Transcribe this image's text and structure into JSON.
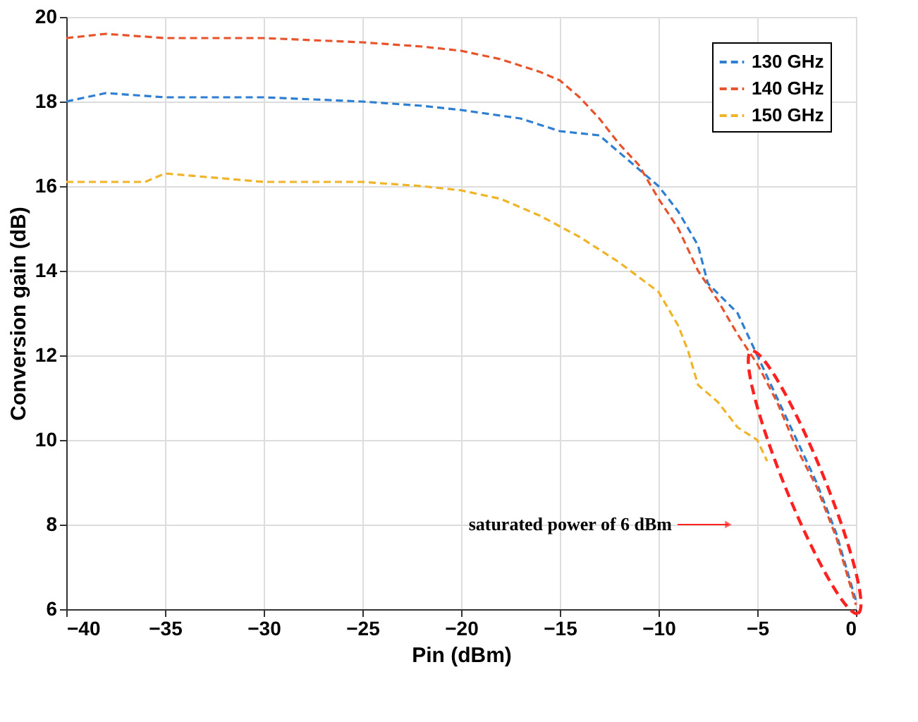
{
  "chart_data": {
    "type": "line",
    "xlabel": "Pin (dBm)",
    "ylabel": "Conversion gain (dB)",
    "xlim": [
      -40,
      0
    ],
    "ylim": [
      6,
      20
    ],
    "xticks": [
      -40,
      -35,
      -30,
      -25,
      -20,
      -15,
      -10,
      -5,
      0
    ],
    "yticks": [
      6,
      8,
      10,
      12,
      14,
      16,
      18,
      20
    ],
    "grid": true,
    "legend": "top right",
    "line_style": "dashed",
    "marker": "none",
    "series": [
      {
        "name": "130 GHz",
        "color": "#2e7fd1",
        "x": [
          -40,
          -38,
          -35,
          -30,
          -25,
          -22,
          -20,
          -17,
          -15,
          -13,
          -12,
          -11,
          -10,
          -9,
          -8,
          -7.5,
          -6,
          -5,
          -4,
          -3,
          -2,
          -1,
          -0.5,
          0
        ],
        "values": [
          18.0,
          18.2,
          18.1,
          18.1,
          18.0,
          17.9,
          17.8,
          17.6,
          17.3,
          17.2,
          16.8,
          16.4,
          16.0,
          15.4,
          14.6,
          13.7,
          13.0,
          12.0,
          11.0,
          10.0,
          9.0,
          7.8,
          7.0,
          6.2
        ]
      },
      {
        "name": "140 GHz",
        "color": "#e8532b",
        "x": [
          -40,
          -38,
          -35,
          -30,
          -25,
          -22,
          -20,
          -18,
          -16,
          -15,
          -14,
          -13,
          -12,
          -11,
          -10,
          -9,
          -8,
          -7,
          -6,
          -5,
          -4,
          -3,
          -2,
          -1,
          0
        ],
        "values": [
          19.5,
          19.6,
          19.5,
          19.5,
          19.4,
          19.3,
          19.2,
          19.0,
          18.7,
          18.5,
          18.1,
          17.6,
          17.0,
          16.5,
          15.7,
          15.0,
          14.0,
          13.3,
          12.5,
          11.8,
          10.9,
          9.8,
          8.9,
          7.7,
          6.1
        ]
      },
      {
        "name": "150 GHz",
        "color": "#f0b429",
        "x": [
          -40,
          -36,
          -35,
          -30,
          -25,
          -22,
          -20,
          -18,
          -16,
          -14,
          -12,
          -10,
          -9,
          -8.5,
          -8,
          -7,
          -6,
          -5,
          -4.5
        ],
        "values": [
          16.1,
          16.1,
          16.3,
          16.1,
          16.1,
          16.0,
          15.9,
          15.7,
          15.3,
          14.8,
          14.2,
          13.5,
          12.7,
          12.1,
          11.3,
          10.9,
          10.3,
          10.0,
          9.5
        ]
      }
    ],
    "annotations": [
      "saturated power of 6 dBm"
    ]
  }
}
